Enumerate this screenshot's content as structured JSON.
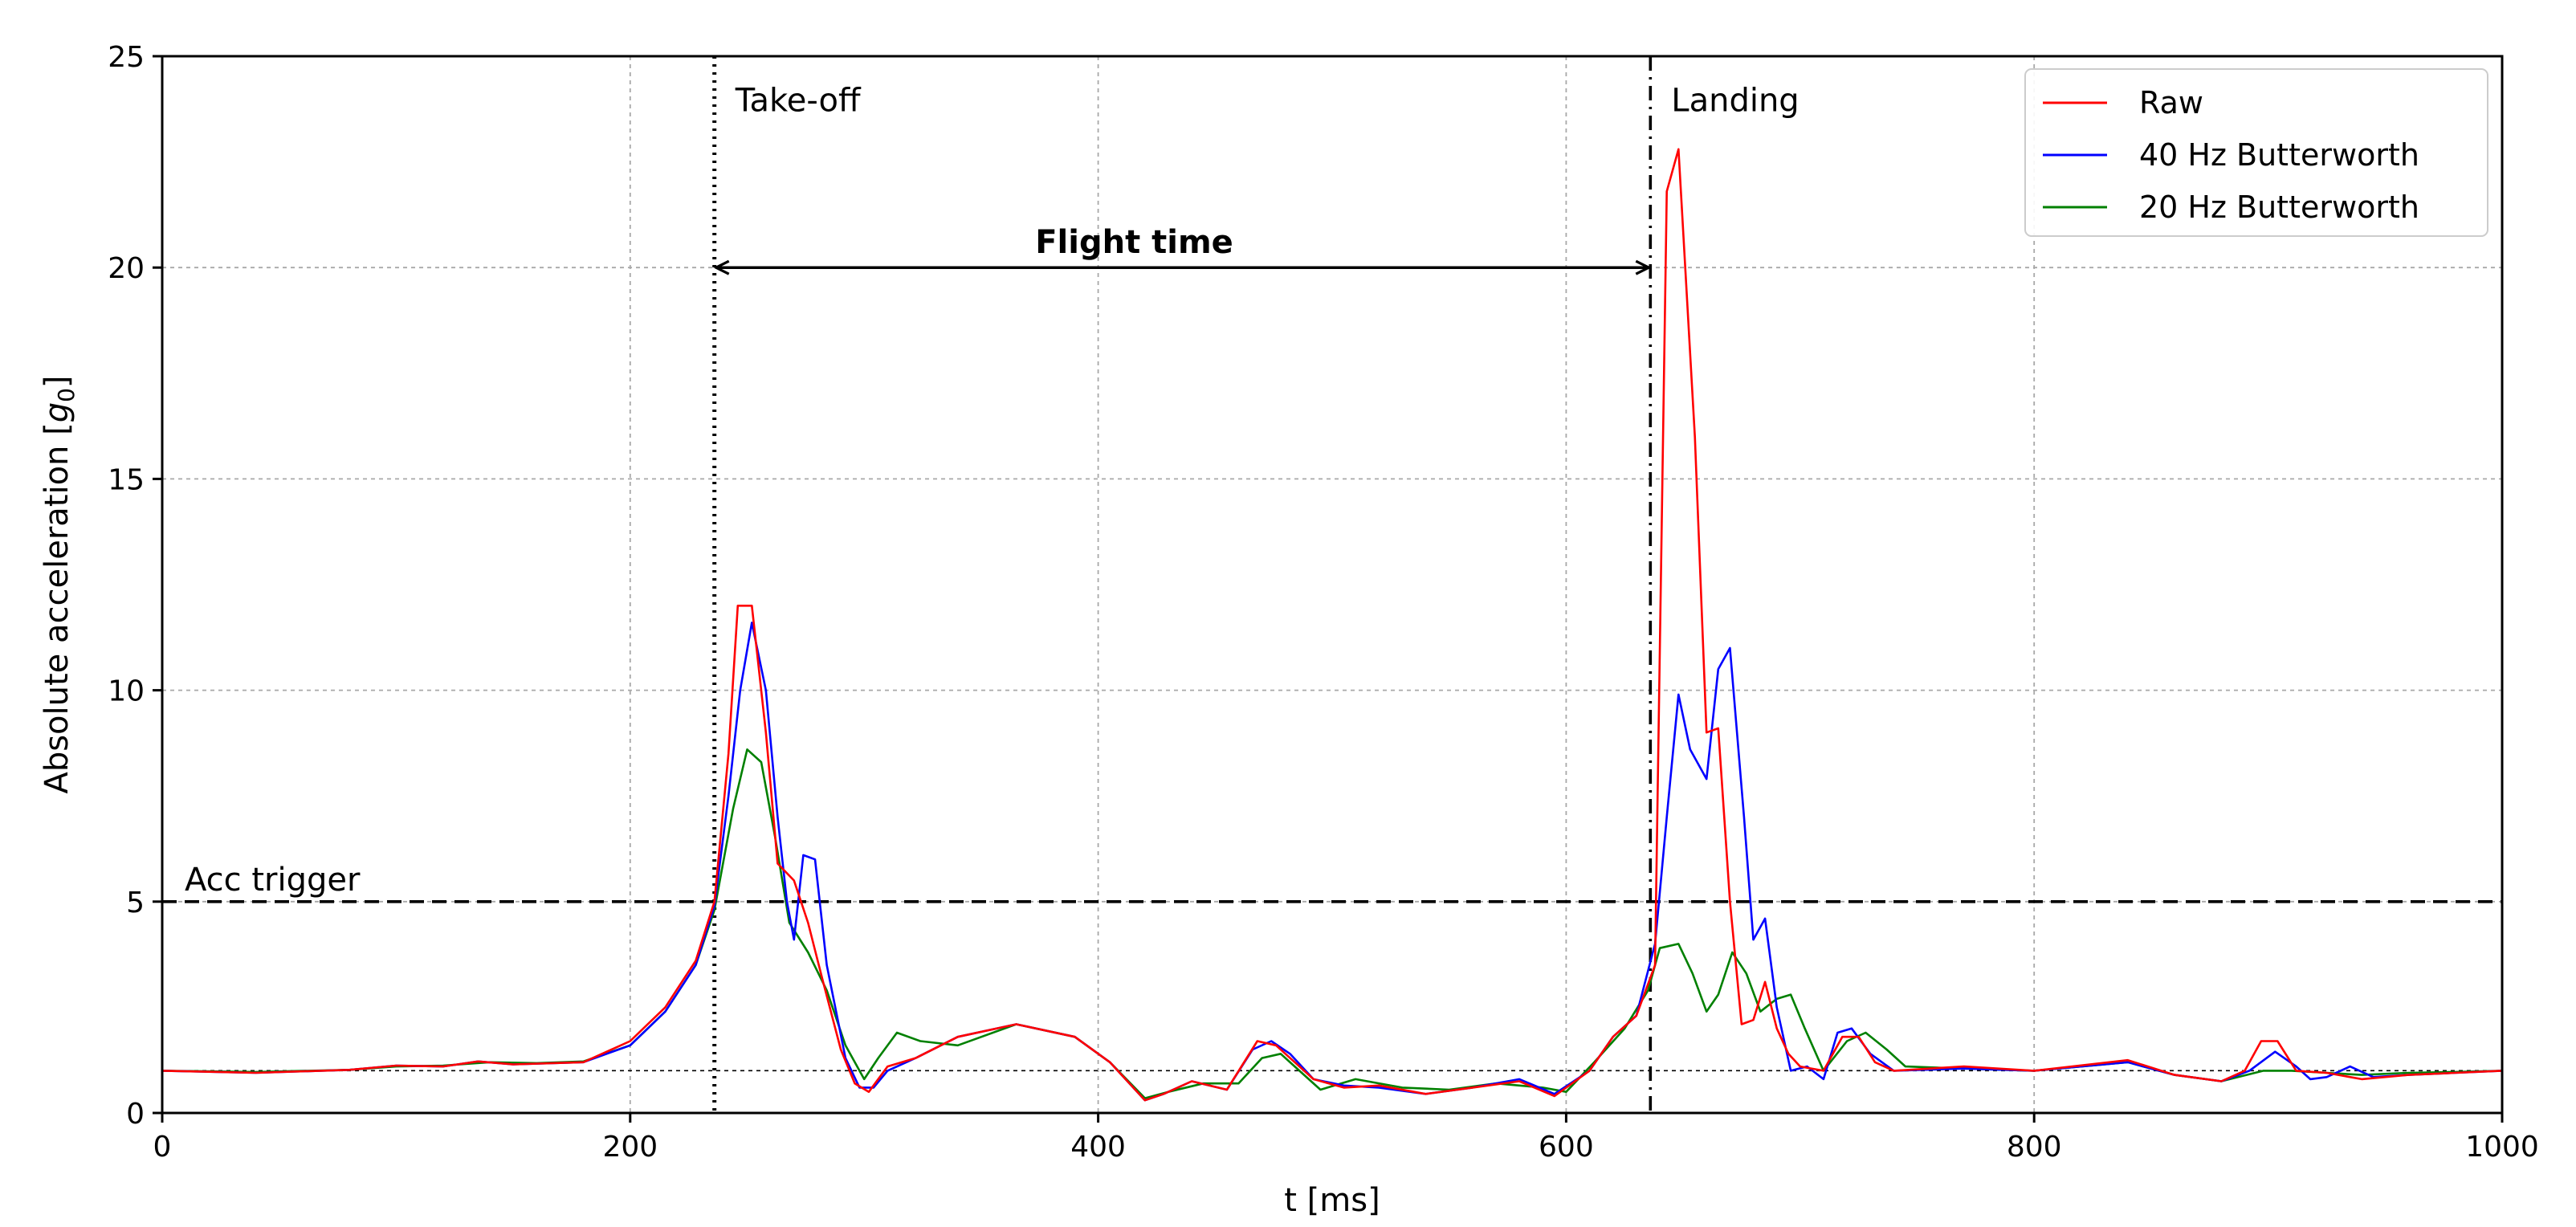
{
  "chart_data": {
    "type": "line",
    "title": "",
    "xlabel": "t [ms]",
    "ylabel_main": "Absolute acceleration [",
    "ylabel_sym": "g",
    "ylabel_sub": "0",
    "ylabel_end": "]",
    "xlim": [
      0,
      1000
    ],
    "ylim": [
      0,
      25
    ],
    "xticks": [
      0,
      200,
      400,
      600,
      800,
      1000
    ],
    "yticks": [
      0,
      5,
      10,
      15,
      20,
      25
    ],
    "grid": true,
    "legend_position": "top-right",
    "colors": {
      "raw": "#ff0000",
      "bw40": "#0000ff",
      "bw20": "#008000"
    },
    "reference_lines": {
      "acc_trigger_y": 5,
      "baseline_y": 1,
      "takeoff_x": 236,
      "landing_x": 636
    },
    "annotations": {
      "takeoff": "Take-off",
      "landing": "Landing",
      "flight_time": "Flight time",
      "acc_trigger": "Acc trigger"
    },
    "series": [
      {
        "name": "Raw",
        "key": "raw",
        "points": [
          [
            0,
            1.0
          ],
          [
            40,
            0.95
          ],
          [
            80,
            1.02
          ],
          [
            100,
            1.12
          ],
          [
            120,
            1.1
          ],
          [
            135,
            1.22
          ],
          [
            150,
            1.15
          ],
          [
            180,
            1.2
          ],
          [
            200,
            1.7
          ],
          [
            215,
            2.5
          ],
          [
            228,
            3.6
          ],
          [
            236,
            5.0
          ],
          [
            242,
            8.5
          ],
          [
            246,
            12.0
          ],
          [
            252,
            12.0
          ],
          [
            258,
            9.0
          ],
          [
            263,
            5.9
          ],
          [
            270,
            5.5
          ],
          [
            276,
            4.5
          ],
          [
            282,
            3.2
          ],
          [
            290,
            1.5
          ],
          [
            296,
            0.7
          ],
          [
            302,
            0.5
          ],
          [
            310,
            1.1
          ],
          [
            322,
            1.3
          ],
          [
            340,
            1.8
          ],
          [
            365,
            2.1
          ],
          [
            390,
            1.8
          ],
          [
            405,
            1.2
          ],
          [
            420,
            0.3
          ],
          [
            428,
            0.45
          ],
          [
            440,
            0.75
          ],
          [
            455,
            0.55
          ],
          [
            468,
            1.7
          ],
          [
            476,
            1.6
          ],
          [
            484,
            1.2
          ],
          [
            492,
            0.8
          ],
          [
            505,
            0.6
          ],
          [
            520,
            0.65
          ],
          [
            540,
            0.45
          ],
          [
            560,
            0.6
          ],
          [
            580,
            0.75
          ],
          [
            595,
            0.4
          ],
          [
            610,
            1.0
          ],
          [
            620,
            1.8
          ],
          [
            630,
            2.3
          ],
          [
            638,
            3.5
          ],
          [
            643,
            21.8
          ],
          [
            648,
            22.8
          ],
          [
            655,
            16
          ],
          [
            660,
            9.0
          ],
          [
            665,
            9.1
          ],
          [
            670,
            5.0
          ],
          [
            675,
            2.1
          ],
          [
            680,
            2.2
          ],
          [
            685,
            3.1
          ],
          [
            690,
            2.0
          ],
          [
            695,
            1.4
          ],
          [
            700,
            1.1
          ],
          [
            710,
            1.0
          ],
          [
            718,
            1.8
          ],
          [
            725,
            1.8
          ],
          [
            732,
            1.2
          ],
          [
            740,
            1.0
          ],
          [
            770,
            1.1
          ],
          [
            800,
            1.0
          ],
          [
            840,
            1.25
          ],
          [
            860,
            0.9
          ],
          [
            880,
            0.75
          ],
          [
            890,
            1.0
          ],
          [
            897,
            1.7
          ],
          [
            904,
            1.7
          ],
          [
            912,
            1.0
          ],
          [
            925,
            0.95
          ],
          [
            940,
            0.8
          ],
          [
            960,
            0.9
          ],
          [
            980,
            0.95
          ],
          [
            1000,
            1.0
          ]
        ]
      },
      {
        "name": "40 Hz Butterworth",
        "key": "bw40",
        "points": [
          [
            0,
            1.0
          ],
          [
            40,
            0.95
          ],
          [
            80,
            1.02
          ],
          [
            100,
            1.12
          ],
          [
            120,
            1.1
          ],
          [
            135,
            1.22
          ],
          [
            150,
            1.15
          ],
          [
            180,
            1.2
          ],
          [
            200,
            1.6
          ],
          [
            215,
            2.4
          ],
          [
            228,
            3.5
          ],
          [
            236,
            4.9
          ],
          [
            242,
            7.5
          ],
          [
            247,
            10.0
          ],
          [
            252,
            11.6
          ],
          [
            258,
            10.0
          ],
          [
            263,
            7.0
          ],
          [
            267,
            5.0
          ],
          [
            270,
            4.1
          ],
          [
            274,
            6.1
          ],
          [
            279,
            6.0
          ],
          [
            284,
            3.5
          ],
          [
            292,
            1.3
          ],
          [
            298,
            0.6
          ],
          [
            304,
            0.6
          ],
          [
            310,
            1.0
          ],
          [
            322,
            1.3
          ],
          [
            340,
            1.8
          ],
          [
            365,
            2.1
          ],
          [
            390,
            1.8
          ],
          [
            405,
            1.2
          ],
          [
            420,
            0.3
          ],
          [
            428,
            0.45
          ],
          [
            440,
            0.75
          ],
          [
            455,
            0.55
          ],
          [
            466,
            1.5
          ],
          [
            474,
            1.7
          ],
          [
            482,
            1.4
          ],
          [
            492,
            0.8
          ],
          [
            505,
            0.65
          ],
          [
            520,
            0.6
          ],
          [
            540,
            0.45
          ],
          [
            560,
            0.6
          ],
          [
            580,
            0.8
          ],
          [
            595,
            0.45
          ],
          [
            610,
            1.0
          ],
          [
            620,
            1.8
          ],
          [
            630,
            2.3
          ],
          [
            638,
            4.0
          ],
          [
            643,
            7.0
          ],
          [
            648,
            9.9
          ],
          [
            653,
            8.6
          ],
          [
            660,
            7.9
          ],
          [
            665,
            10.5
          ],
          [
            670,
            11.0
          ],
          [
            676,
            7.0
          ],
          [
            680,
            4.1
          ],
          [
            685,
            4.6
          ],
          [
            690,
            2.5
          ],
          [
            696,
            1.0
          ],
          [
            703,
            1.1
          ],
          [
            710,
            0.8
          ],
          [
            716,
            1.9
          ],
          [
            722,
            2.0
          ],
          [
            730,
            1.4
          ],
          [
            740,
            1.0
          ],
          [
            770,
            1.05
          ],
          [
            800,
            1.0
          ],
          [
            840,
            1.2
          ],
          [
            860,
            0.9
          ],
          [
            880,
            0.75
          ],
          [
            892,
            1.0
          ],
          [
            903,
            1.45
          ],
          [
            912,
            1.1
          ],
          [
            918,
            0.8
          ],
          [
            925,
            0.85
          ],
          [
            935,
            1.1
          ],
          [
            945,
            0.85
          ],
          [
            960,
            0.9
          ],
          [
            980,
            0.95
          ],
          [
            1000,
            1.0
          ]
        ]
      },
      {
        "name": "20 Hz Butterworth",
        "key": "bw20",
        "points": [
          [
            0,
            1.0
          ],
          [
            40,
            0.97
          ],
          [
            80,
            1.02
          ],
          [
            100,
            1.1
          ],
          [
            120,
            1.12
          ],
          [
            140,
            1.2
          ],
          [
            160,
            1.18
          ],
          [
            180,
            1.22
          ],
          [
            200,
            1.6
          ],
          [
            215,
            2.4
          ],
          [
            228,
            3.5
          ],
          [
            236,
            4.8
          ],
          [
            244,
            7.2
          ],
          [
            250,
            8.6
          ],
          [
            256,
            8.3
          ],
          [
            262,
            6.5
          ],
          [
            268,
            4.5
          ],
          [
            276,
            3.8
          ],
          [
            284,
            2.9
          ],
          [
            292,
            1.6
          ],
          [
            300,
            0.8
          ],
          [
            306,
            1.3
          ],
          [
            314,
            1.9
          ],
          [
            324,
            1.7
          ],
          [
            340,
            1.6
          ],
          [
            365,
            2.1
          ],
          [
            390,
            1.8
          ],
          [
            405,
            1.2
          ],
          [
            420,
            0.35
          ],
          [
            430,
            0.5
          ],
          [
            445,
            0.7
          ],
          [
            460,
            0.7
          ],
          [
            470,
            1.3
          ],
          [
            478,
            1.4
          ],
          [
            486,
            1.0
          ],
          [
            495,
            0.55
          ],
          [
            510,
            0.8
          ],
          [
            530,
            0.6
          ],
          [
            550,
            0.55
          ],
          [
            570,
            0.7
          ],
          [
            590,
            0.6
          ],
          [
            600,
            0.5
          ],
          [
            612,
            1.2
          ],
          [
            625,
            2.0
          ],
          [
            635,
            2.9
          ],
          [
            640,
            3.9
          ],
          [
            648,
            4.0
          ],
          [
            654,
            3.3
          ],
          [
            660,
            2.4
          ],
          [
            665,
            2.8
          ],
          [
            671,
            3.8
          ],
          [
            677,
            3.3
          ],
          [
            683,
            2.4
          ],
          [
            690,
            2.7
          ],
          [
            696,
            2.8
          ],
          [
            702,
            2.0
          ],
          [
            710,
            1.0
          ],
          [
            720,
            1.7
          ],
          [
            728,
            1.9
          ],
          [
            737,
            1.5
          ],
          [
            745,
            1.1
          ],
          [
            770,
            1.05
          ],
          [
            800,
            1.0
          ],
          [
            840,
            1.2
          ],
          [
            860,
            0.9
          ],
          [
            880,
            0.75
          ],
          [
            898,
            1.0
          ],
          [
            910,
            1.0
          ],
          [
            925,
            0.95
          ],
          [
            940,
            0.9
          ],
          [
            960,
            0.95
          ],
          [
            980,
            0.97
          ],
          [
            1000,
            1.0
          ]
        ]
      }
    ]
  }
}
